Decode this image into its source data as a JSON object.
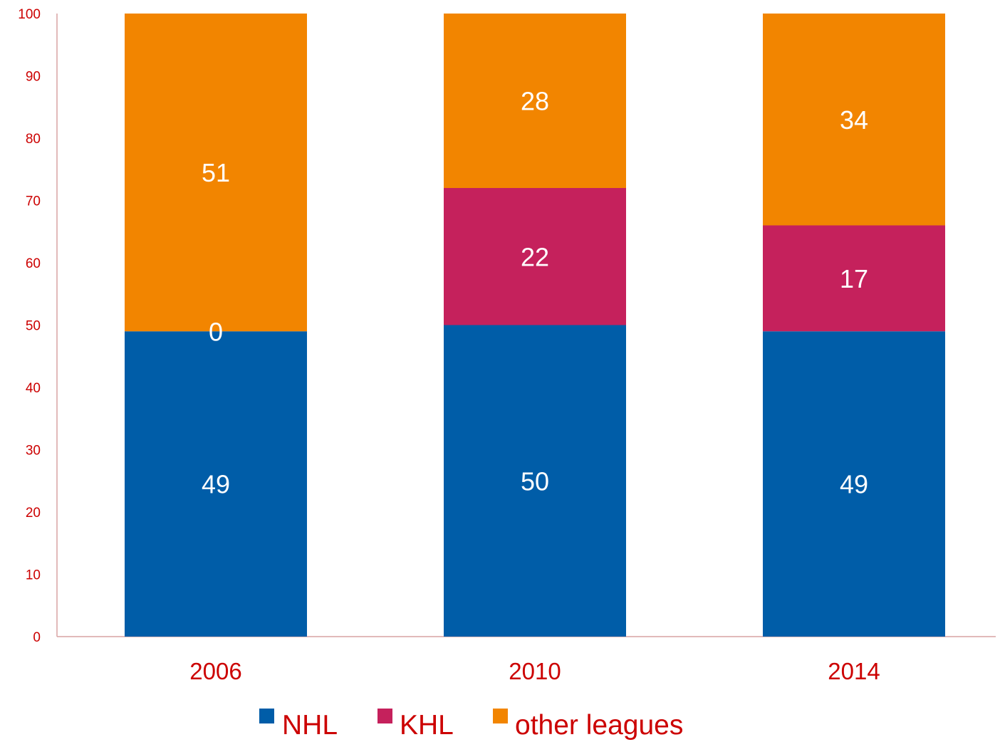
{
  "chart_data": {
    "type": "bar",
    "stacked": true,
    "categories": [
      "2006",
      "2010",
      "2014"
    ],
    "series": [
      {
        "name": "NHL",
        "values": [
          49,
          50,
          49
        ],
        "color": "#005DA8"
      },
      {
        "name": "KHL",
        "values": [
          0,
          22,
          17
        ],
        "color": "#C5215C"
      },
      {
        "name": "other leagues",
        "values": [
          51,
          28,
          34
        ],
        "color": "#F28500"
      }
    ],
    "ylim": [
      0,
      100
    ],
    "yticks": [
      "0",
      "10",
      "20",
      "30",
      "40",
      "50",
      "60",
      "70",
      "80",
      "90",
      "100"
    ],
    "grid": false,
    "legend_position": "bottom",
    "axis_color": "#CC0000",
    "axis_line_color": "#D9A3A3",
    "data_label_color": "#FFFFFF"
  }
}
